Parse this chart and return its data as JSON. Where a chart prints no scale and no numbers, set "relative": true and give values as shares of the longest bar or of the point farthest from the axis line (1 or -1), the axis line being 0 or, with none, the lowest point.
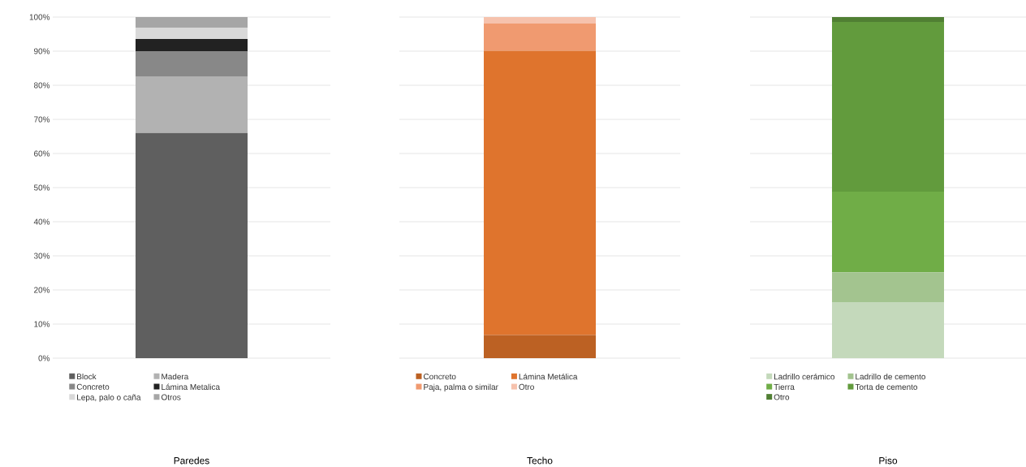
{
  "chart_data": [
    {
      "type": "bar",
      "stacked": true,
      "xlabel": "Paredes",
      "categories": [
        null
      ],
      "ylim": [
        0,
        100
      ],
      "yticks": [
        {
          "value": 0,
          "label": "0%"
        },
        {
          "value": 10,
          "label": "10%"
        },
        {
          "value": 20,
          "label": "20%"
        },
        {
          "value": 30,
          "label": "30%"
        },
        {
          "value": 40,
          "label": "40%"
        },
        {
          "value": 50,
          "label": "50%"
        },
        {
          "value": 60,
          "label": "60%"
        },
        {
          "value": 70,
          "label": "70%"
        },
        {
          "value": 80,
          "label": "80%"
        },
        {
          "value": 90,
          "label": "90%"
        },
        {
          "value": 100,
          "label": "100%"
        }
      ],
      "grid": "y",
      "legend": "bottom",
      "tick_labels": "y",
      "series": [
        {
          "name": "Block",
          "color": "#5f5f5f",
          "values": [
            66
          ]
        },
        {
          "name": "Madera",
          "color": "#b2b2b2",
          "values": [
            16.6
          ]
        },
        {
          "name": "Concreto",
          "color": "#888888",
          "values": [
            7.4
          ]
        },
        {
          "name": "Lámina Metalica",
          "color": "#222222",
          "values": [
            3.6
          ]
        },
        {
          "name": "Lepa, palo o caña",
          "color": "#d9d9d9",
          "values": [
            3.3
          ]
        },
        {
          "name": "Otros",
          "color": "#a6a6a6",
          "values": [
            3.1
          ]
        }
      ]
    },
    {
      "type": "bar",
      "stacked": true,
      "relative": true,
      "xlabel": "Techo",
      "categories": [
        null
      ],
      "grid": "y",
      "legend": "bottom",
      "tick_labels": false,
      "series": [
        {
          "name": "Concreto",
          "color": "#bc6123",
          "values": [
            0.068
          ]
        },
        {
          "name": "Lámina Metálica",
          "color": "#df742d",
          "values": [
            0.833
          ]
        },
        {
          "name": "Paja, palma o similar",
          "color": "#f09a70",
          "values": [
            0.08
          ]
        },
        {
          "name": "Otro",
          "color": "#f6c2ad",
          "values": [
            0.019
          ]
        }
      ]
    },
    {
      "type": "bar",
      "stacked": true,
      "relative": true,
      "xlabel": "Piso",
      "categories": [
        null
      ],
      "grid": "y",
      "legend": "bottom",
      "tick_labels": false,
      "series": [
        {
          "name": "Ladrillo cerámico",
          "color": "#c4d9bb",
          "values": [
            0.164
          ]
        },
        {
          "name": "Ladrillo de cemento",
          "color": "#a3c48f",
          "values": [
            0.088
          ]
        },
        {
          "name": "Tierra",
          "color": "#70ad47",
          "values": [
            0.236
          ]
        },
        {
          "name": "Torta de cemento",
          "color": "#629b3d",
          "values": [
            0.498
          ]
        },
        {
          "name": "Otro",
          "color": "#507f33",
          "values": [
            0.014
          ]
        }
      ]
    }
  ]
}
